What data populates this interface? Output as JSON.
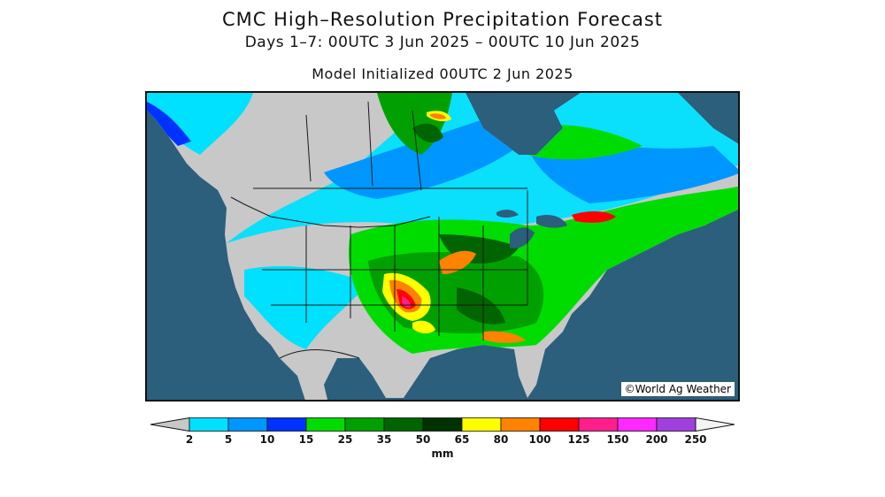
{
  "title": "CMC High–Resolution Precipitation Forecast",
  "subtitle": "Days 1–7: 00UTC 3 Jun 2025 – 00UTC 10 Jun 2025",
  "initialized": "Model Initialized 00UTC 2 Jun 2025",
  "credit": "©World Ag Weather",
  "colorbar": {
    "units": "mm",
    "below_min_color": "#c8c8c8",
    "above_max_color": "#f4f4f4",
    "bins": [
      {
        "color": "#00e0ff"
      },
      {
        "color": "#0096ff"
      },
      {
        "color": "#0032ff"
      },
      {
        "color": "#00dc00"
      },
      {
        "color": "#00a000"
      },
      {
        "color": "#006400"
      },
      {
        "color": "#003200"
      },
      {
        "color": "#ffff00"
      },
      {
        "color": "#ff8200"
      },
      {
        "color": "#ff0000"
      },
      {
        "color": "#ff1e8c"
      },
      {
        "color": "#ff28ff"
      },
      {
        "color": "#a040dc"
      }
    ],
    "ticks": [
      "2",
      "5",
      "10",
      "15",
      "25",
      "35",
      "50",
      "65",
      "80",
      "100",
      "125",
      "150",
      "200",
      "250"
    ]
  },
  "colors": {
    "ocean": "#2b5f7c",
    "dry_land": "#c8c8c8",
    "border": "#1a1a1a"
  }
}
